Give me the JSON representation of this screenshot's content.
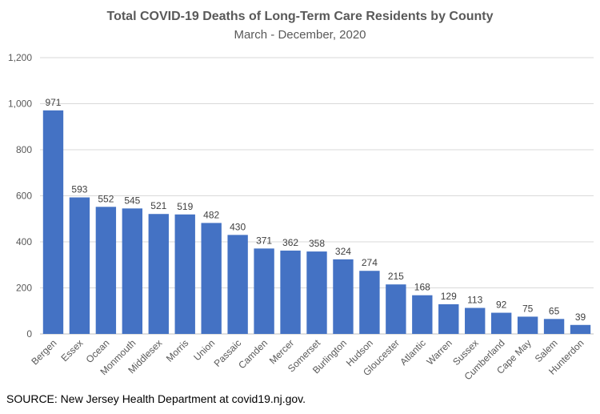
{
  "chart_data": {
    "type": "bar",
    "title": "Total COVID-19 Deaths of Long-Term Care Residents by County",
    "subtitle": "March - December, 2020",
    "xlabel": "",
    "ylabel": "",
    "ylim": [
      0,
      1200
    ],
    "yticks": [
      0,
      200,
      400,
      600,
      800,
      1000,
      1200
    ],
    "ytick_labels": [
      "0",
      "200",
      "400",
      "600",
      "800",
      "1,000",
      "1,200"
    ],
    "grid": true,
    "bar_color": "#4472C4",
    "categories": [
      "Bergen",
      "Essex",
      "Ocean",
      "Monmouth",
      "Middlesex",
      "Morris",
      "Union",
      "Passaic",
      "Camden",
      "Mercer",
      "Somerset",
      "Burlington",
      "Hudson",
      "Gloucester",
      "Atlantic",
      "Warren",
      "Sussex",
      "Cumberland",
      "Cape May",
      "Salem",
      "Hunterdon"
    ],
    "values": [
      971,
      593,
      552,
      545,
      521,
      519,
      482,
      430,
      371,
      362,
      358,
      324,
      274,
      215,
      168,
      129,
      113,
      92,
      75,
      65,
      39
    ]
  },
  "source": "SOURCE: New Jersey Health Department at covid19.nj.gov."
}
